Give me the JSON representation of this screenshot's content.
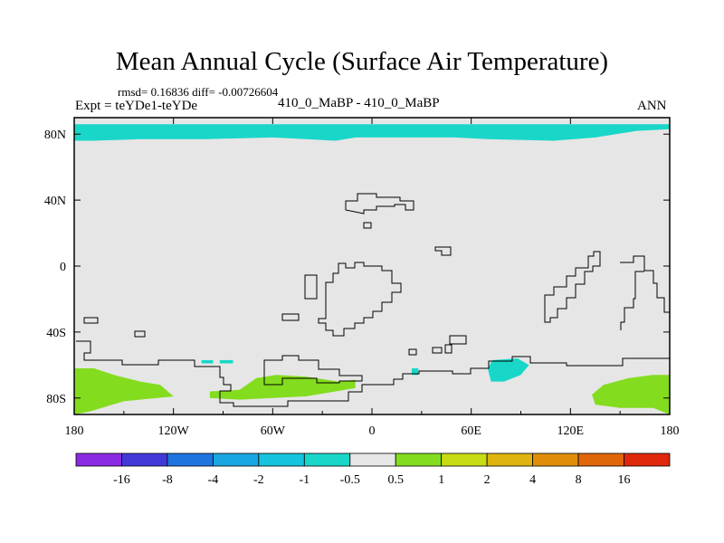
{
  "title": "Mean Annual Cycle (Surface Air Temperature)",
  "stats": "rmsd= 0.16836 diff= -0.00726604",
  "experiment": "Expt = teYDe1-teYDe",
  "case_label": "410_0_MaBP - 410_0_MaBP",
  "season": "ANN",
  "chart_data": {
    "type": "heatmap",
    "title": "Mean Annual Cycle (Surface Air Temperature)",
    "subtitle": "410_0_MaBP - 410_0_MaBP",
    "projection": "cylindrical-equidistant",
    "xlim": [
      -180,
      180
    ],
    "ylim": [
      -90,
      90
    ],
    "x_ticks": [
      {
        "value": -180,
        "label": "180"
      },
      {
        "value": -120,
        "label": "120W"
      },
      {
        "value": -60,
        "label": "60W"
      },
      {
        "value": 0,
        "label": "0"
      },
      {
        "value": 60,
        "label": "60E"
      },
      {
        "value": 120,
        "label": "120E"
      },
      {
        "value": 180,
        "label": "180"
      }
    ],
    "y_ticks": [
      {
        "value": 80,
        "label": "80N"
      },
      {
        "value": 40,
        "label": "40N"
      },
      {
        "value": 0,
        "label": "0"
      },
      {
        "value": -40,
        "label": "40S"
      },
      {
        "value": -80,
        "label": "80S"
      }
    ],
    "background_level": {
      "range": "-0.5 to 0.5",
      "color": "#e6e6e6"
    },
    "regions": [
      {
        "name": "arctic-cool-band",
        "level": "-1 to -0.5",
        "color": "#19d7c8",
        "points": [
          [
            -180,
            86
          ],
          [
            -180,
            76
          ],
          [
            -168,
            76
          ],
          [
            -140,
            77
          ],
          [
            -100,
            77
          ],
          [
            -60,
            78
          ],
          [
            -40,
            77
          ],
          [
            -22,
            76
          ],
          [
            -10,
            78
          ],
          [
            20,
            78
          ],
          [
            50,
            78
          ],
          [
            70,
            77
          ],
          [
            110,
            76
          ],
          [
            135,
            78
          ],
          [
            160,
            82
          ],
          [
            180,
            83
          ],
          [
            180,
            86
          ]
        ]
      },
      {
        "name": "south-pacific-cool-patch-1",
        "level": "-1 to -0.5",
        "color": "#19d7c8",
        "points": [
          [
            -103,
            -57
          ],
          [
            -96,
            -57
          ],
          [
            -96,
            -59
          ],
          [
            -103,
            -59
          ]
        ]
      },
      {
        "name": "south-pacific-cool-patch-2",
        "level": "-1 to -0.5",
        "color": "#19d7c8",
        "points": [
          [
            -92,
            -57
          ],
          [
            -84,
            -57
          ],
          [
            -84,
            -59
          ],
          [
            -92,
            -59
          ]
        ]
      },
      {
        "name": "indian-ocean-cool-patch",
        "level": "-1 to -0.5",
        "color": "#19d7c8",
        "points": [
          [
            73,
            -57
          ],
          [
            88,
            -56
          ],
          [
            95,
            -60
          ],
          [
            90,
            -66
          ],
          [
            80,
            -70
          ],
          [
            72,
            -70
          ],
          [
            70,
            -62
          ]
        ]
      },
      {
        "name": "atlantic-cool-speck",
        "level": "-1 to -0.5",
        "color": "#19d7c8",
        "points": [
          [
            24,
            -62
          ],
          [
            28,
            -62
          ],
          [
            28,
            -66
          ],
          [
            24,
            -66
          ]
        ]
      },
      {
        "name": "antarctic-warm-west",
        "level": "0.5 to 1",
        "color": "#84dc1e",
        "points": [
          [
            -180,
            -62
          ],
          [
            -168,
            -62
          ],
          [
            -156,
            -66
          ],
          [
            -140,
            -70
          ],
          [
            -128,
            -72
          ],
          [
            -120,
            -79
          ],
          [
            -150,
            -82
          ],
          [
            -170,
            -88
          ],
          [
            -180,
            -90
          ]
        ]
      },
      {
        "name": "antarctic-warm-peninsula",
        "level": "0.5 to 1",
        "color": "#84dc1e",
        "points": [
          [
            -98,
            -76
          ],
          [
            -80,
            -75
          ],
          [
            -70,
            -68
          ],
          [
            -58,
            -66
          ],
          [
            -40,
            -67
          ],
          [
            -20,
            -70
          ],
          [
            -10,
            -69
          ],
          [
            -10,
            -74
          ],
          [
            -40,
            -79
          ],
          [
            -60,
            -80
          ],
          [
            -80,
            -81
          ],
          [
            -98,
            -80
          ]
        ]
      },
      {
        "name": "antarctic-warm-east",
        "level": "0.5 to 1",
        "color": "#84dc1e",
        "points": [
          [
            133,
            -78
          ],
          [
            140,
            -72
          ],
          [
            155,
            -68
          ],
          [
            170,
            -66
          ],
          [
            180,
            -66
          ],
          [
            180,
            -90
          ],
          [
            170,
            -86
          ],
          [
            150,
            -86
          ],
          [
            135,
            -84
          ]
        ]
      }
    ],
    "colorbar": {
      "orientation": "horizontal",
      "colors": [
        "#8a2be2",
        "#4338d8",
        "#1f74e0",
        "#1aa6e0",
        "#16c3dc",
        "#19d7c8",
        "#e6e6e6",
        "#84dc1e",
        "#c8dc14",
        "#e0b40e",
        "#e08e0a",
        "#e0660a",
        "#e0280c"
      ],
      "labels": [
        "-16",
        "-8",
        "-4",
        "-2",
        "-1",
        "-0.5",
        "0.5",
        "1",
        "2",
        "4",
        "8",
        "16"
      ]
    }
  }
}
